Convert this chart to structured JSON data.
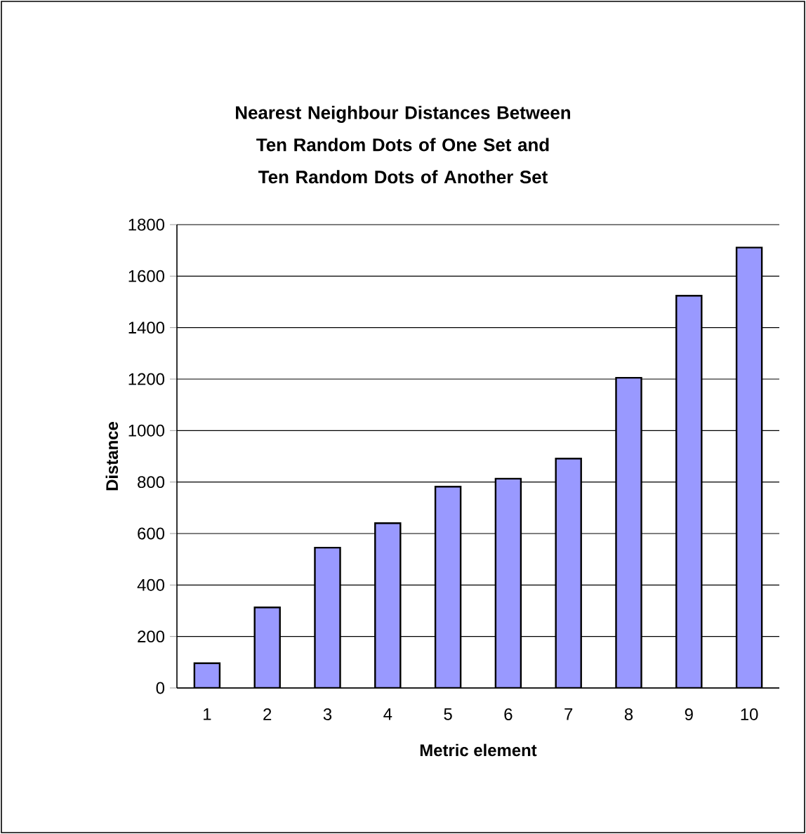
{
  "chart_data": {
    "type": "bar",
    "title": "Nearest Neighbour Distances Between Ten Random Dots of One Set and Ten Random Dots of Another Set",
    "xlabel": "Metric element",
    "ylabel": "Distance",
    "categories": [
      "1",
      "2",
      "3",
      "4",
      "5",
      "6",
      "7",
      "8",
      "9",
      "10"
    ],
    "values": [
      96,
      313,
      545,
      640,
      782,
      813,
      891,
      1205,
      1524,
      1711
    ],
    "color": "#9999ff",
    "ylim": [
      0,
      1800
    ],
    "yticks": [
      0,
      200,
      400,
      600,
      800,
      1000,
      1200,
      1400,
      1600,
      1800
    ],
    "grid": "y"
  }
}
